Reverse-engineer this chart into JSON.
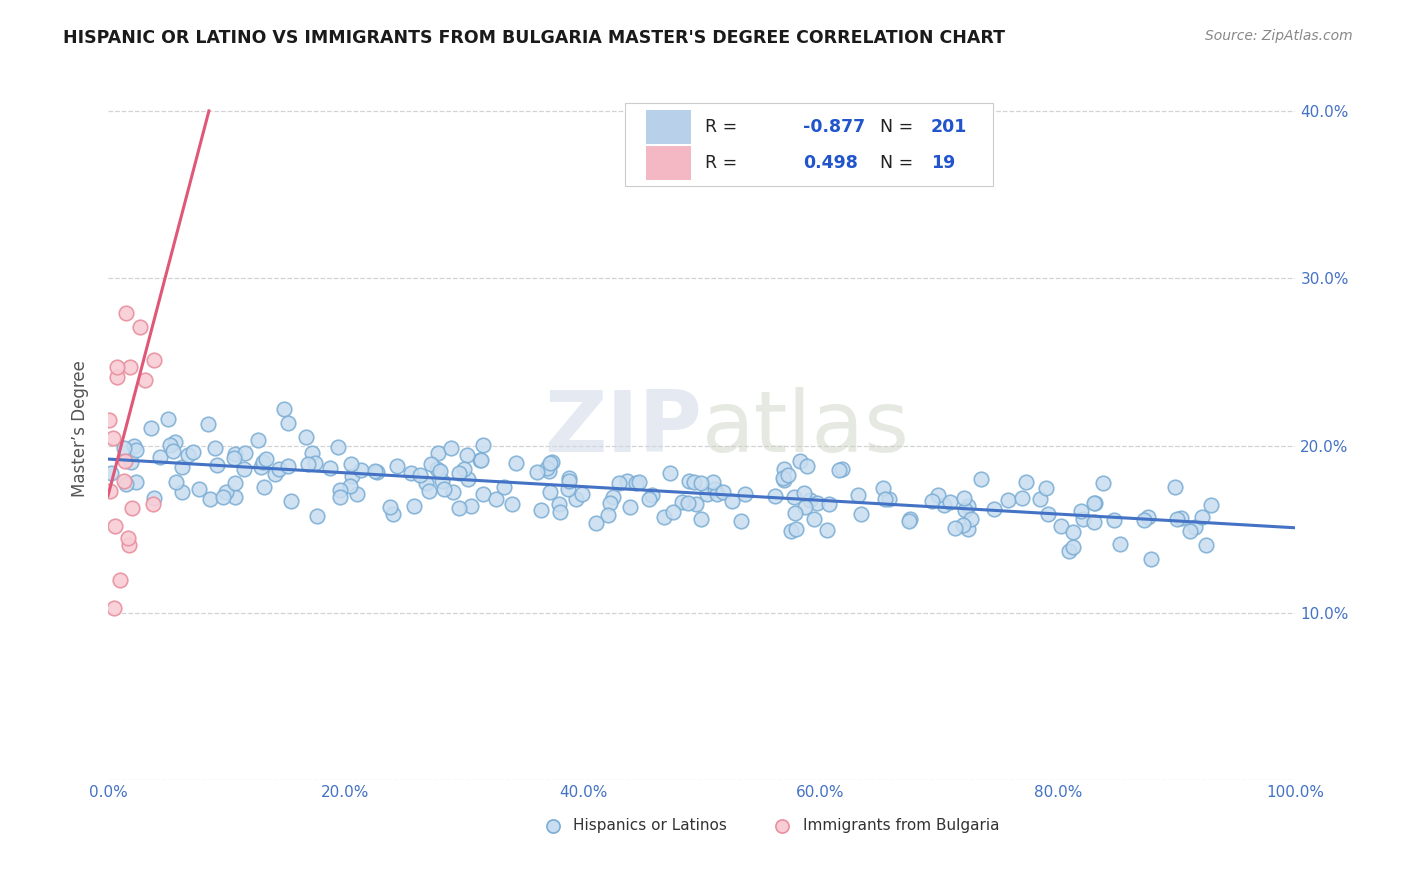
{
  "title": "HISPANIC OR LATINO VS IMMIGRANTS FROM BULGARIA MASTER'S DEGREE CORRELATION CHART",
  "source": "Source: ZipAtlas.com",
  "ylabel": "Master’s Degree",
  "watermark_zip": "ZIP",
  "watermark_atlas": "atlas",
  "r1": -0.877,
  "n1": 201,
  "r2": 0.498,
  "n2": 19,
  "blue_face_color": "#c8ddf0",
  "blue_edge_color": "#7aadd4",
  "pink_face_color": "#f9cdd5",
  "pink_edge_color": "#e8909f",
  "blue_line_color": "#4472c4",
  "pink_line_color": "#e05878",
  "title_color": "#1a1a1a",
  "axis_tick_color": "#4472c4",
  "ylabel_color": "#555555",
  "legend_text_dark": "#222222",
  "legend_text_blue": "#2255cc",
  "source_color": "#888888",
  "grid_color": "#c8c8c8",
  "background_color": "#ffffff",
  "xlim": [
    0.0,
    1.0
  ],
  "ylim": [
    0.0,
    0.42
  ],
  "xticks": [
    0.0,
    0.2,
    0.4,
    0.6,
    0.8,
    1.0
  ],
  "xtick_labels": [
    "0.0%",
    "20.0%",
    "40.0%",
    "60.0%",
    "80.0%",
    "100.0%"
  ],
  "yticks": [
    0.0,
    0.1,
    0.2,
    0.3,
    0.4
  ],
  "ytick_labels_right": [
    "",
    "10.0%",
    "20.0%",
    "30.0%",
    "40.0%"
  ],
  "bottom_legend_labels": [
    "Hispanics or Latinos",
    "Immigrants from Bulgaria"
  ]
}
